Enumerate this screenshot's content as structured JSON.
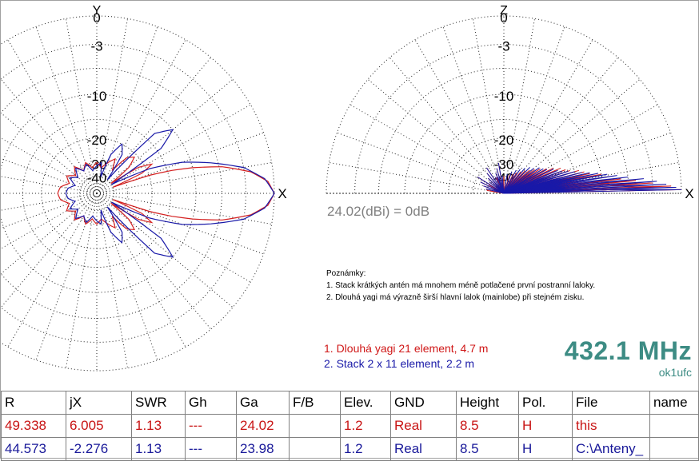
{
  "chart_data": [
    {
      "type": "polar",
      "title": "",
      "view": "azimuth",
      "axis_top_label": "Y",
      "axis_right_label": "X",
      "rings_db": [
        "0",
        "-3",
        "-10",
        "-20",
        "-30",
        "-40"
      ],
      "series": [
        {
          "name": "1. Dlouhá yagi 21 element, 4.7 m",
          "color": "#d42020",
          "pattern": [
            [
              0,
              0
            ],
            [
              4,
              -0.6
            ],
            [
              8,
              -2.3
            ],
            [
              12,
              -5.6
            ],
            [
              15,
              -10
            ],
            [
              17,
              -14
            ],
            [
              19,
              -20
            ],
            [
              21,
              -40
            ],
            [
              24,
              -22
            ],
            [
              28,
              -18
            ],
            [
              32,
              -22
            ],
            [
              35,
              -40
            ],
            [
              39,
              -25
            ],
            [
              44,
              -21
            ],
            [
              50,
              -23
            ],
            [
              56,
              -32
            ],
            [
              62,
              -26
            ],
            [
              70,
              -29
            ],
            [
              80,
              -33
            ],
            [
              90,
              -30
            ],
            [
              100,
              -33
            ],
            [
              110,
              -29
            ],
            [
              120,
              -33
            ],
            [
              130,
              -28
            ],
            [
              140,
              -32
            ],
            [
              150,
              -28
            ],
            [
              160,
              -31
            ],
            [
              170,
              -27
            ],
            [
              180,
              -26
            ]
          ]
        },
        {
          "name": "2. Stack 2 x 11 element, 2.2 m",
          "color": "#1818a8",
          "pattern": [
            [
              0,
              0
            ],
            [
              5,
              -0.9
            ],
            [
              10,
              -3
            ],
            [
              15,
              -7
            ],
            [
              20,
              -11.5
            ],
            [
              25,
              -19
            ],
            [
              28,
              -30
            ],
            [
              31,
              -40
            ],
            [
              35,
              -14
            ],
            [
              40,
              -10
            ],
            [
              46,
              -13
            ],
            [
              52,
              -40
            ],
            [
              57,
              -23
            ],
            [
              63,
              -20
            ],
            [
              70,
              -25
            ],
            [
              76,
              -40
            ],
            [
              82,
              -30
            ],
            [
              90,
              -32
            ],
            [
              100,
              -35
            ],
            [
              110,
              -30
            ],
            [
              120,
              -33
            ],
            [
              130,
              -29
            ],
            [
              140,
              -34
            ],
            [
              150,
              -30
            ],
            [
              160,
              -35
            ],
            [
              170,
              -31
            ],
            [
              180,
              -30
            ]
          ]
        }
      ]
    },
    {
      "type": "polar",
      "title": "",
      "view": "elevation",
      "axis_top_label": "Z",
      "axis_right_label": "X",
      "rings_db": [
        "0",
        "-3",
        "-10",
        "-20",
        "-30",
        "-40"
      ],
      "series": [
        {
          "name": "1. Dlouhá yagi 21 element, 4.7 m",
          "color": "#d42020",
          "lobes": [
            [
              1.2,
              0
            ],
            [
              2.5,
              -1
            ],
            [
              4,
              -3
            ],
            [
              5.5,
              -5
            ],
            [
              7,
              -7
            ],
            [
              9,
              -9
            ],
            [
              11,
              -10
            ],
            [
              13,
              -12
            ],
            [
              15,
              -13
            ],
            [
              17,
              -14
            ],
            [
              19,
              -16
            ],
            [
              21,
              -17
            ],
            [
              24,
              -18
            ],
            [
              27,
              -20
            ],
            [
              30,
              -22
            ],
            [
              34,
              -24
            ],
            [
              38,
              -26
            ],
            [
              42,
              -28
            ],
            [
              47,
              -30
            ],
            [
              52,
              -32
            ],
            [
              58,
              -34
            ],
            [
              64,
              -36
            ],
            [
              72,
              -38
            ],
            [
              80,
              -40
            ],
            [
              90,
              -40
            ],
            [
              100,
              -40
            ],
            [
              115,
              -40
            ],
            [
              130,
              -40
            ],
            [
              150,
              -40
            ],
            [
              170,
              -40
            ]
          ]
        },
        {
          "name": "2. Stack 2 x 11 element, 2.2 m",
          "color": "#1818a8",
          "lobes": [
            [
              1.2,
              0
            ],
            [
              2,
              -0.5
            ],
            [
              3.2,
              -1.5
            ],
            [
              4.5,
              -2.5
            ],
            [
              6,
              -4
            ],
            [
              7.5,
              -6
            ],
            [
              9,
              -7.5
            ],
            [
              10.5,
              -9
            ],
            [
              12,
              -10.5
            ],
            [
              13.5,
              -12
            ],
            [
              15,
              -13.5
            ],
            [
              17,
              -15
            ],
            [
              19,
              -16.5
            ],
            [
              21,
              -18
            ],
            [
              23,
              -19
            ],
            [
              26,
              -20
            ],
            [
              29,
              -22
            ],
            [
              32,
              -23
            ],
            [
              36,
              -24
            ],
            [
              40,
              -26
            ],
            [
              45,
              -27
            ],
            [
              50,
              -29
            ],
            [
              56,
              -31
            ],
            [
              62,
              -33
            ],
            [
              70,
              -35
            ],
            [
              80,
              -38
            ],
            [
              95,
              -40
            ],
            [
              110,
              -40
            ],
            [
              130,
              -40
            ],
            [
              160,
              -40
            ]
          ]
        }
      ]
    }
  ],
  "gain_reference": "24.02(dBi) = 0dB",
  "notes": {
    "heading": "Poznámky:",
    "lines": [
      "1. Stack krátkých antén má mnohem méně potlačené první postranní laloky.",
      "2. Dlouhá yagi má výrazně širší hlavní lalok (mainlobe) při stejném zisku."
    ]
  },
  "legend": {
    "line1": "1. Dlouhá yagi 21 element, 4.7 m",
    "line2": "2. Stack 2 x 11 element, 2.2 m"
  },
  "frequency": "432.1 MHz",
  "callsign": "ok1ufc",
  "table": {
    "headers": [
      "R",
      "jX",
      "SWR",
      "Gh",
      "Ga",
      "F/B",
      "Elev.",
      "GND",
      "Height",
      "Pol.",
      "File",
      "name"
    ],
    "rows": [
      [
        "49.338",
        "6.005",
        "1.13",
        "---",
        "24.02",
        "",
        "1.2",
        "Real",
        "8.5",
        "H",
        "this",
        ""
      ],
      [
        "44.573",
        "-2.276",
        "1.13",
        "---",
        "23.98",
        "",
        "1.2",
        "Real",
        "8.5",
        "H",
        "C:\\Anteny_",
        ""
      ]
    ]
  },
  "colors": {
    "series1": "#d42020",
    "series2": "#1818a8",
    "frequency": "#3d8c84",
    "gain_note": "#808080"
  }
}
